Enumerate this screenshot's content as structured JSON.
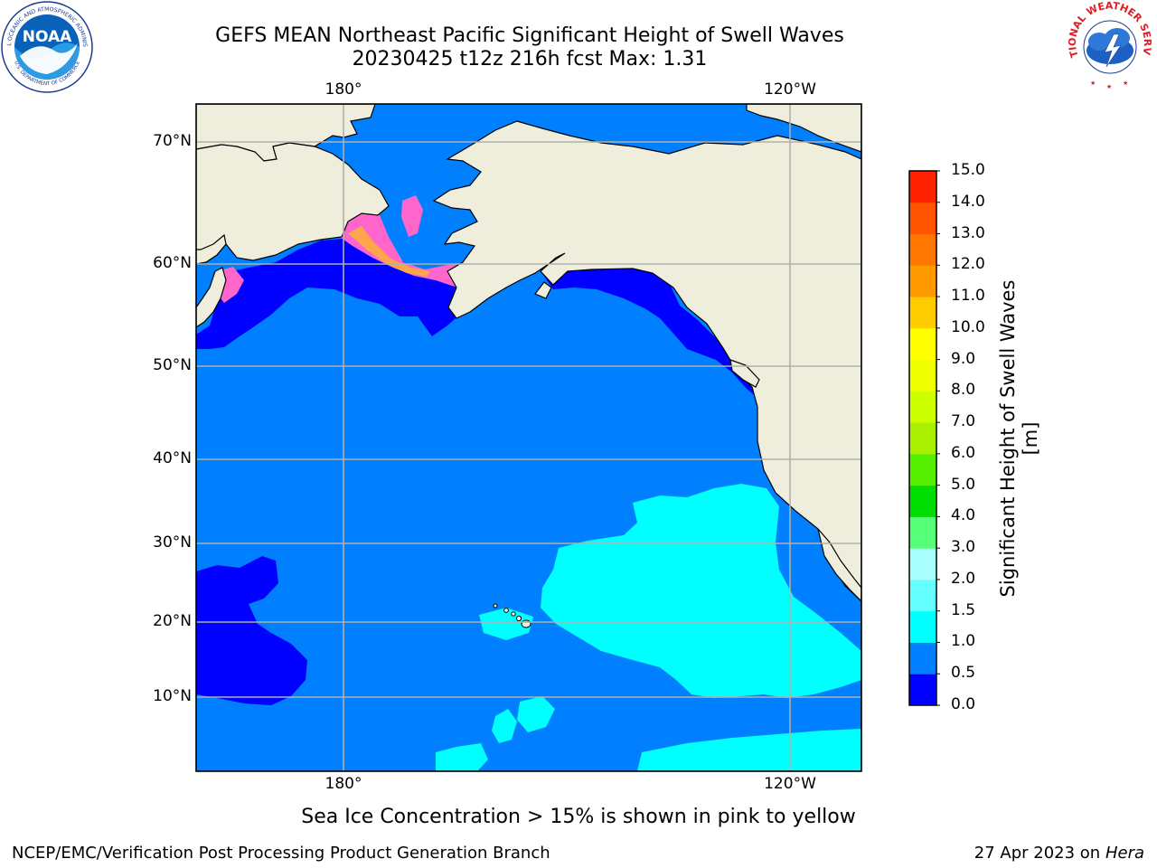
{
  "header": {
    "title": "GEFS MEAN Northeast Pacific Significant Height of Swell Waves",
    "subtitle": "20230425 t12z 216h fcst   Max: 1.31"
  },
  "logos": {
    "noaa_text": "NOAA",
    "noaa_ring": "NATIONAL OCEANIC AND ATMOSPHERIC ADMINISTRATION",
    "noaa_ring_bottom": "U.S. DEPARTMENT OF COMMERCE",
    "nws_ring": "NATIONAL WEATHER SERVICE"
  },
  "map": {
    "lon_labels_top": [
      "180°",
      "120°W"
    ],
    "lon_labels_bottom": [
      "180°",
      "120°W"
    ],
    "lat_labels": [
      "70°N",
      "60°N",
      "50°N",
      "40°N",
      "30°N",
      "20°N",
      "10°N"
    ],
    "colors": {
      "land": "#efeedd",
      "ocean_0_0.5": "#0000ff",
      "ocean_0.5_1.0": "#0080ff",
      "ocean_1.0_1.5": "#00ffff",
      "ice_pink": "#ff66cc",
      "ice_orange": "#ffa64d",
      "ice_yellow": "#ffff00",
      "gridline": "#b0b0b0"
    }
  },
  "colorbar": {
    "label": "Significant Height of Swell Waves [m]",
    "ticks": [
      "0.0",
      "0.5",
      "1.0",
      "1.5",
      "2.0",
      "3.0",
      "4.0",
      "5.0",
      "6.0",
      "7.0",
      "8.0",
      "9.0",
      "10.0",
      "11.0",
      "12.0",
      "13.0",
      "14.0",
      "15.0"
    ],
    "colors": [
      "#0000ff",
      "#0080ff",
      "#00ffff",
      "#66ffff",
      "#aaffff",
      "#55ff77",
      "#00dd00",
      "#55ee00",
      "#aaee00",
      "#ccff00",
      "#eeff00",
      "#ffff00",
      "#ffcc00",
      "#ff9900",
      "#ff7700",
      "#ff5500",
      "#ff2200"
    ]
  },
  "footer": {
    "ice_note": "Sea Ice Concentration > 15% is shown in pink to yellow",
    "credit": "NCEP/EMC/Verification Post Processing Product Generation Branch",
    "date": "27 Apr 2023 on ",
    "machine": "Hera"
  }
}
